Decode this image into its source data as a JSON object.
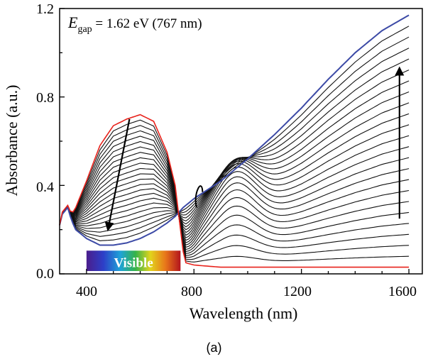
{
  "chart_data": {
    "type": "line",
    "xlabel": "Wavelength (nm)",
    "ylabel": "Absorbance (a.u.)",
    "xlim": [
      300,
      1650
    ],
    "ylim": [
      0,
      1.2
    ],
    "x_ticks": [
      "400",
      "800",
      "1200",
      "1600"
    ],
    "y_ticks": [
      "0.0",
      "0.4",
      "0.8",
      "1.2"
    ],
    "grid": false,
    "legend": "none",
    "annotation": {
      "symbol": "E",
      "subscript": "gap",
      "text": " = 1.62 eV (767 nm)"
    },
    "visible_band": {
      "label": "Visible",
      "range_nm": [
        400,
        750
      ]
    },
    "arrows": [
      {
        "from": [
          560,
          0.7
        ],
        "to": [
          480,
          0.2
        ]
      },
      {
        "from": [
          1565,
          0.25
        ],
        "to": [
          1565,
          0.93
        ]
      }
    ],
    "series": [
      {
        "color": "#e8221b",
        "role": "initial",
        "x": [
          300,
          310,
          330,
          345,
          360,
          400,
          450,
          500,
          550,
          600,
          650,
          700,
          730,
          750,
          760,
          770,
          800,
          900,
          1000,
          1200,
          1400,
          1600
        ],
        "y": [
          0.22,
          0.28,
          0.31,
          0.27,
          0.3,
          0.42,
          0.58,
          0.67,
          0.7,
          0.72,
          0.69,
          0.55,
          0.4,
          0.2,
          0.1,
          0.05,
          0.04,
          0.03,
          0.03,
          0.03,
          0.03,
          0.03
        ]
      },
      {
        "color": "#3c4aa6",
        "role": "final",
        "x": [
          300,
          310,
          330,
          345,
          360,
          400,
          450,
          500,
          550,
          600,
          650,
          700,
          730,
          760,
          800,
          850,
          900,
          950,
          1000,
          1100,
          1200,
          1300,
          1400,
          1500,
          1600
        ],
        "y": [
          0.22,
          0.27,
          0.3,
          0.24,
          0.2,
          0.16,
          0.13,
          0.13,
          0.14,
          0.16,
          0.19,
          0.23,
          0.26,
          0.3,
          0.34,
          0.38,
          0.42,
          0.47,
          0.52,
          0.63,
          0.75,
          0.88,
          1.0,
          1.1,
          1.17
        ]
      }
    ],
    "intermediate_curves": 22
  },
  "panel_label": "(a)"
}
